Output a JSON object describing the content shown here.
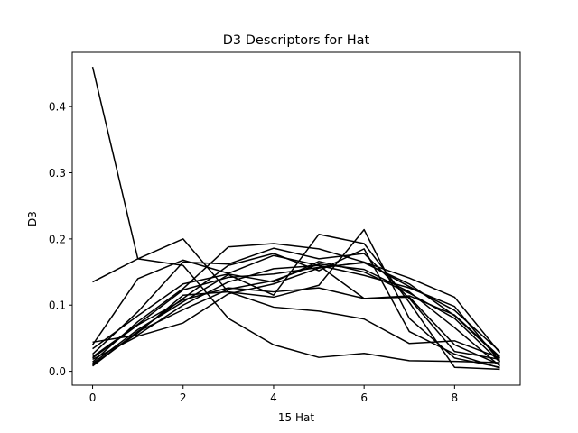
{
  "chart_data": {
    "type": "line",
    "title": "D3 Descriptors for Hat",
    "xlabel": "15 Hat",
    "ylabel": "D3",
    "xlim": [
      -0.45,
      9.45
    ],
    "ylim": [
      -0.021,
      0.482
    ],
    "x_ticks": [
      0,
      2,
      4,
      6,
      8
    ],
    "y_ticks": [
      0.0,
      0.1,
      0.2,
      0.3,
      0.4
    ],
    "grid": false,
    "legend": "none",
    "line_color": "#000000",
    "x": [
      0,
      1,
      2,
      3,
      4,
      5,
      6,
      7,
      8,
      9
    ],
    "series": [
      {
        "values": [
          0.46,
          0.17,
          0.16,
          0.08,
          0.04,
          0.021,
          0.027,
          0.016,
          0.015,
          0.013
        ]
      },
      {
        "values": [
          0.135,
          0.17,
          0.2,
          0.12,
          0.097,
          0.091,
          0.079,
          0.042,
          0.046,
          0.02
        ]
      },
      {
        "values": [
          0.04,
          0.14,
          0.168,
          0.148,
          0.175,
          0.16,
          0.11,
          0.112,
          0.04,
          0.01
        ]
      },
      {
        "values": [
          0.009,
          0.06,
          0.11,
          0.16,
          0.178,
          0.152,
          0.185,
          0.06,
          0.026,
          0.005
        ]
      },
      {
        "values": [
          0.014,
          0.075,
          0.125,
          0.188,
          0.193,
          0.185,
          0.165,
          0.128,
          0.092,
          0.03
        ]
      },
      {
        "values": [
          0.026,
          0.09,
          0.165,
          0.162,
          0.186,
          0.17,
          0.178,
          0.11,
          0.03,
          0.018
        ]
      },
      {
        "values": [
          0.01,
          0.058,
          0.115,
          0.12,
          0.112,
          0.13,
          0.214,
          0.08,
          0.02,
          0.006
        ]
      },
      {
        "values": [
          0.018,
          0.053,
          0.073,
          0.117,
          0.132,
          0.156,
          0.165,
          0.141,
          0.112,
          0.028
        ]
      },
      {
        "values": [
          0.044,
          0.055,
          0.1,
          0.135,
          0.155,
          0.16,
          0.145,
          0.126,
          0.098,
          0.015
        ]
      },
      {
        "values": [
          0.034,
          0.084,
          0.132,
          0.147,
          0.135,
          0.166,
          0.15,
          0.118,
          0.08,
          0.014
        ]
      },
      {
        "values": [
          0.02,
          0.07,
          0.108,
          0.126,
          0.12,
          0.126,
          0.11,
          0.114,
          0.085,
          0.022
        ]
      },
      {
        "values": [
          0.012,
          0.063,
          0.105,
          0.146,
          0.115,
          0.207,
          0.193,
          0.104,
          0.006,
          0.003
        ]
      },
      {
        "values": [
          0.022,
          0.071,
          0.123,
          0.142,
          0.147,
          0.157,
          0.164,
          0.132,
          0.084,
          0.02
        ]
      },
      {
        "values": [
          0.008,
          0.06,
          0.093,
          0.124,
          0.137,
          0.162,
          0.154,
          0.12,
          0.066,
          0.008
        ]
      }
    ]
  }
}
